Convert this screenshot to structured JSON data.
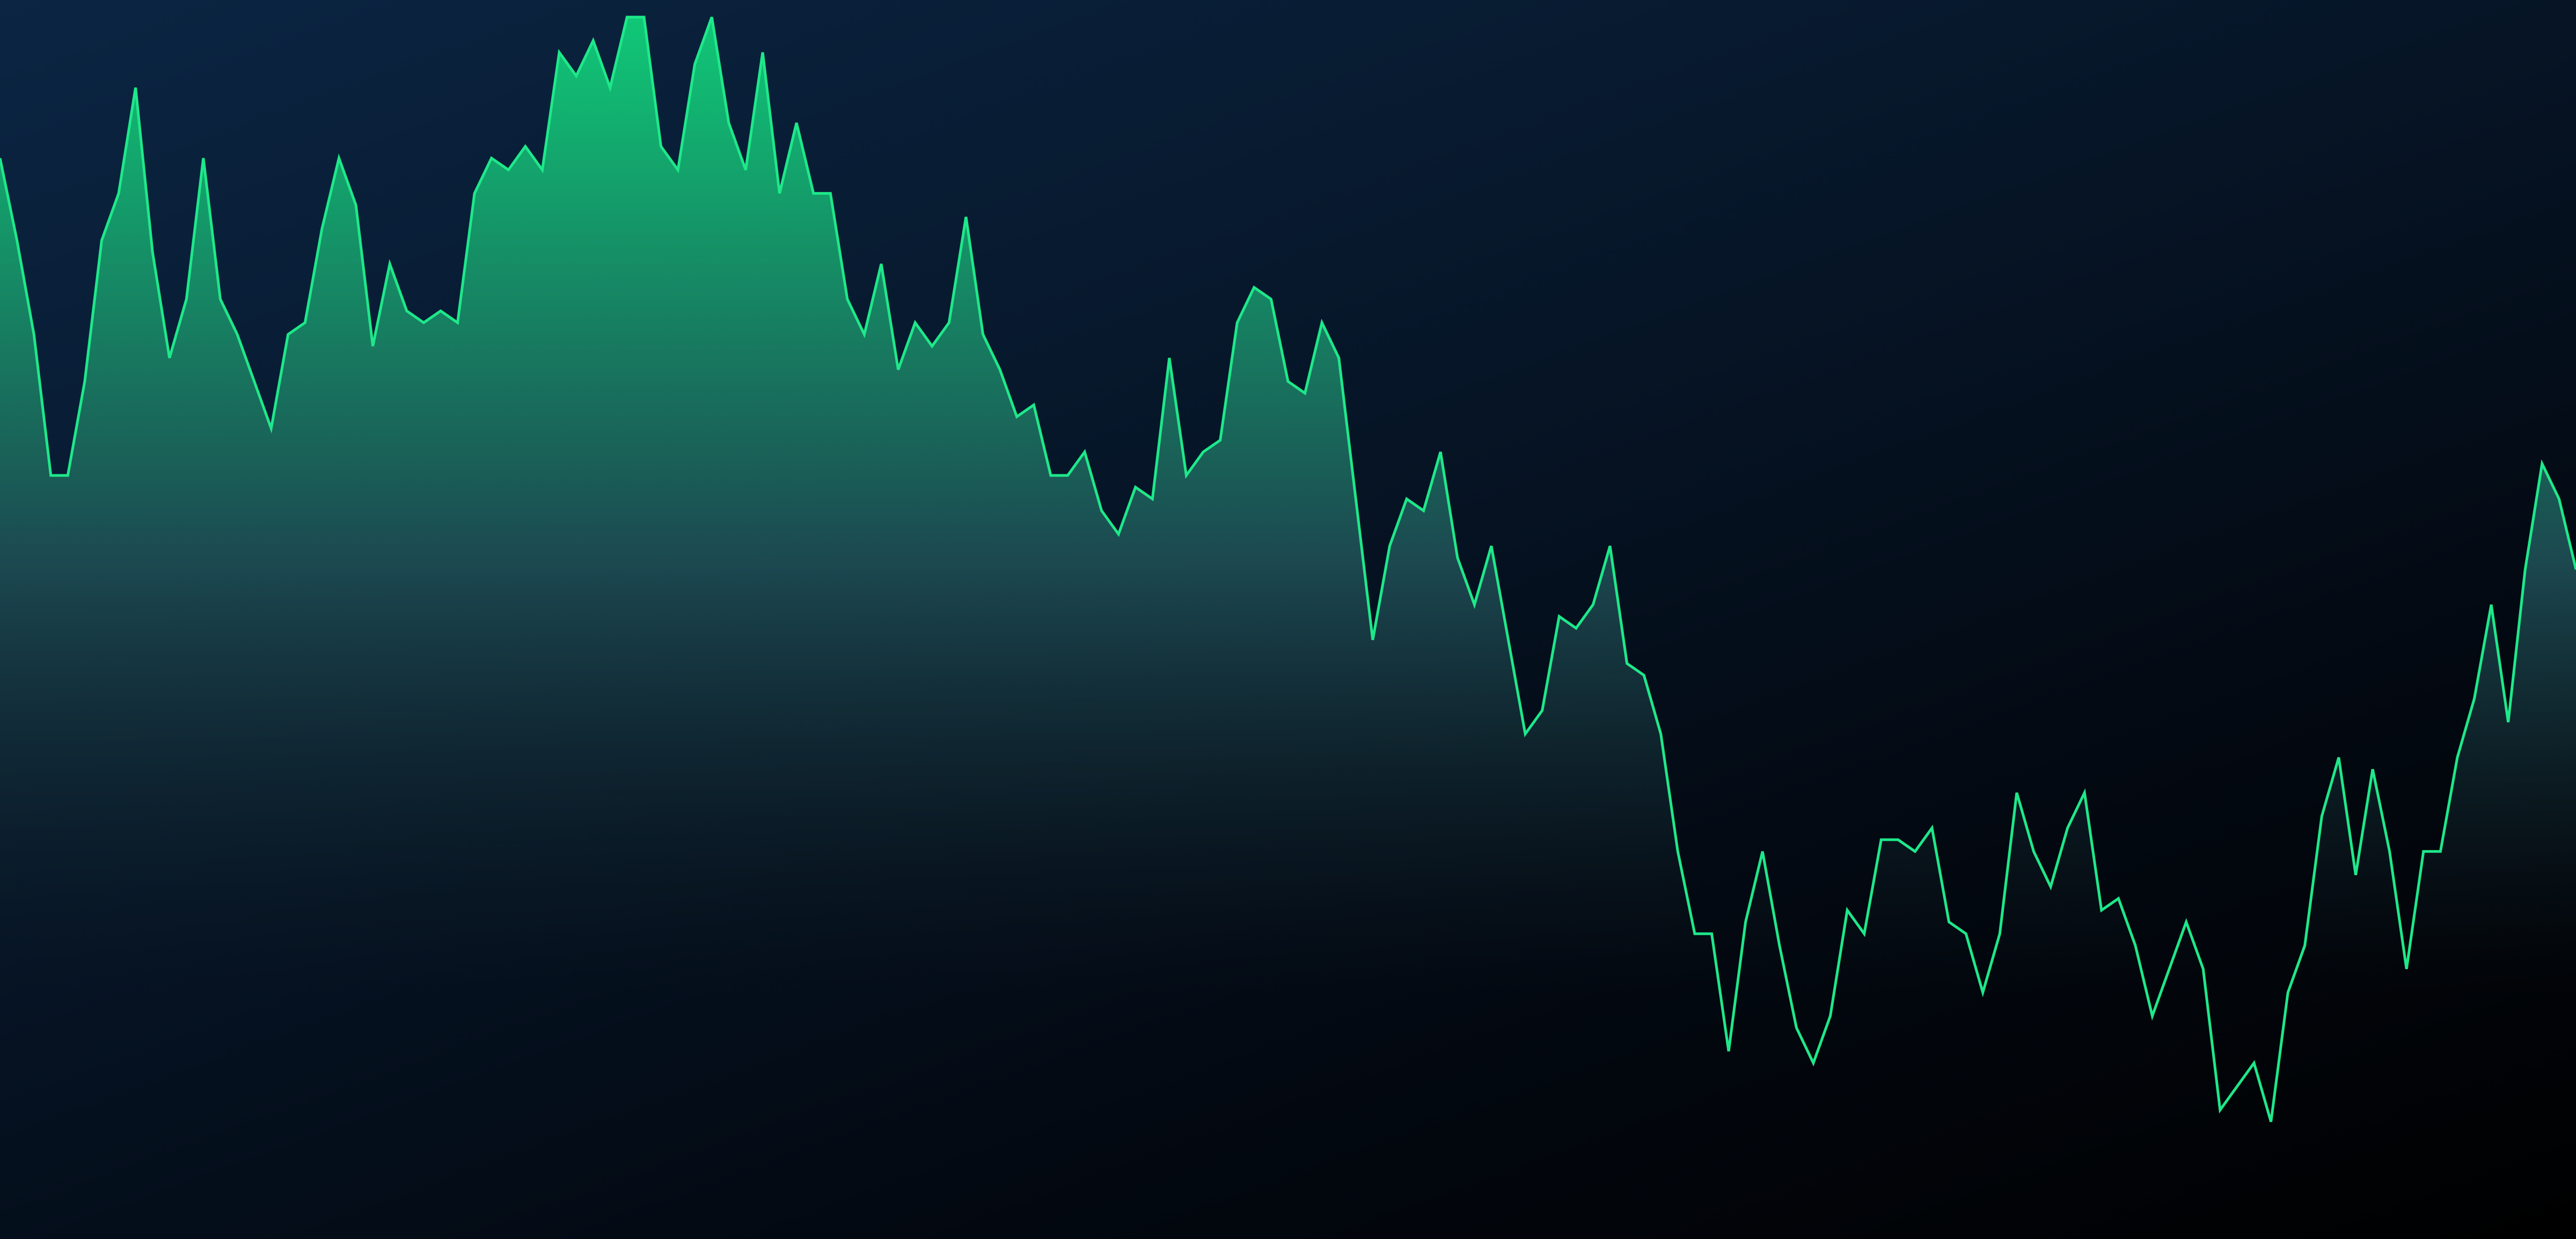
{
  "chart_data": {
    "type": "area",
    "title": "",
    "xlabel": "",
    "ylabel": "",
    "x_axis": "none",
    "y_axis": "none",
    "grid": false,
    "legend": "none",
    "ylim": [
      0,
      100
    ],
    "series": [
      {
        "values": [
          87,
          80,
          72,
          60,
          60,
          68,
          80,
          84,
          93,
          79,
          70,
          75,
          87,
          75,
          72,
          68,
          64,
          72,
          73,
          81,
          87,
          83,
          71,
          78,
          74,
          73,
          74,
          73,
          84,
          87,
          86,
          88,
          86,
          96,
          94,
          97,
          93,
          99,
          99,
          88,
          86,
          95,
          99,
          90,
          86,
          96,
          84,
          90,
          84,
          84,
          75,
          72,
          78,
          69,
          73,
          71,
          73,
          82,
          72,
          69,
          65,
          66,
          60,
          60,
          62,
          57,
          55,
          59,
          58,
          70,
          60,
          62,
          63,
          73,
          76,
          75,
          68,
          67,
          73,
          70,
          58,
          46,
          54,
          58,
          57,
          62,
          53,
          49,
          54,
          46,
          38,
          40,
          48,
          47,
          49,
          54,
          44,
          43,
          38,
          28,
          21,
          21,
          11,
          22,
          28,
          20,
          13,
          10,
          14,
          23,
          21,
          29,
          29,
          28,
          30,
          22,
          21,
          16,
          21,
          33,
          28,
          25,
          30,
          33,
          23,
          24,
          20,
          14,
          18,
          22,
          18,
          6,
          8,
          10,
          5,
          16,
          20,
          31,
          36,
          26,
          35,
          28,
          18,
          28,
          28,
          36,
          41,
          49,
          39,
          52,
          61,
          58,
          52
        ]
      }
    ],
    "colors": {
      "line": "#1ee88a",
      "fill_top": "#10c877",
      "fill_mid": "#1d4a52",
      "fill_bottom": "#0f1a20",
      "background_top_left": "#0b2543",
      "background_bottom_right": "#000000"
    }
  }
}
